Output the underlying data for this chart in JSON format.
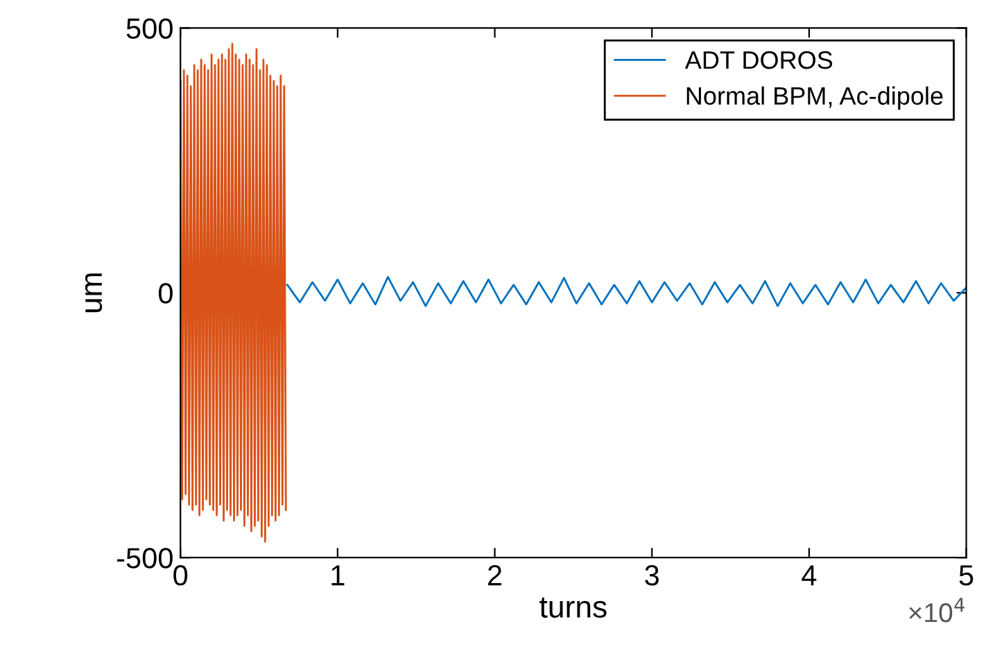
{
  "chart_data": {
    "type": "line",
    "xlabel": "turns",
    "ylabel": "um",
    "xlim": [
      0,
      5
    ],
    "ylim": [
      -500,
      500
    ],
    "xticks": [
      0,
      1,
      2,
      3,
      4,
      5
    ],
    "yticks": [
      -500,
      0,
      500
    ],
    "annotations": [
      "×10$^{4}$"
    ],
    "legend": "top right",
    "grid": false,
    "marker": "none",
    "line_style": "solid",
    "series": [
      {
        "name": "ADT DOROS",
        "color": "#0072bd",
        "x": [
          0.68,
          0.76,
          0.84,
          0.92,
          1.0,
          1.08,
          1.16,
          1.24,
          1.32,
          1.4,
          1.48,
          1.56,
          1.64,
          1.72,
          1.8,
          1.88,
          1.96,
          2.04,
          2.12,
          2.2,
          2.28,
          2.36,
          2.44,
          2.52,
          2.6,
          2.68,
          2.76,
          2.84,
          2.92,
          3.0,
          3.08,
          3.16,
          3.24,
          3.32,
          3.4,
          3.48,
          3.56,
          3.64,
          3.72,
          3.8,
          3.88,
          3.96,
          4.04,
          4.12,
          4.2,
          4.28,
          4.36,
          4.44,
          4.52,
          4.6,
          4.68,
          4.76,
          4.84,
          4.92,
          5.0
        ],
        "values": [
          15,
          -18,
          20,
          -15,
          25,
          -20,
          18,
          -22,
          30,
          -15,
          20,
          -25,
          18,
          -20,
          22,
          -18,
          25,
          -20,
          15,
          -22,
          20,
          -18,
          28,
          -20,
          18,
          -22,
          15,
          -20,
          22,
          -18,
          20,
          -15,
          18,
          -22,
          20,
          -18,
          15,
          -20,
          22,
          -25,
          18,
          -20,
          15,
          -22,
          20,
          -18,
          25,
          -20,
          15,
          -18,
          22,
          -20,
          18,
          -15,
          10
        ]
      },
      {
        "name": "Normal BPM, Ac-dipole",
        "color": "#d95319",
        "x": [
          0,
          0.011,
          0.022,
          0.033,
          0.044,
          0.055,
          0.066,
          0.077,
          0.088,
          0.099,
          0.11,
          0.121,
          0.132,
          0.143,
          0.154,
          0.165,
          0.176,
          0.187,
          0.198,
          0.209,
          0.22,
          0.231,
          0.242,
          0.253,
          0.264,
          0.275,
          0.286,
          0.297,
          0.308,
          0.319,
          0.33,
          0.341,
          0.352,
          0.363,
          0.374,
          0.385,
          0.396,
          0.407,
          0.418,
          0.429,
          0.44,
          0.451,
          0.462,
          0.473,
          0.484,
          0.495,
          0.506,
          0.517,
          0.528,
          0.539,
          0.55,
          0.561,
          0.572,
          0.583,
          0.594,
          0.605,
          0.616,
          0.627,
          0.638,
          0.649,
          0.66,
          0.671
        ],
        "values": [
          400,
          -390,
          420,
          -380,
          410,
          -400,
          390,
          -410,
          430,
          -400,
          420,
          -420,
          440,
          -410,
          430,
          -390,
          420,
          -400,
          450,
          -410,
          430,
          -420,
          440,
          -400,
          450,
          -430,
          440,
          -410,
          460,
          -420,
          470,
          -430,
          450,
          -420,
          440,
          -410,
          430,
          -440,
          450,
          -420,
          440,
          -450,
          430,
          -440,
          460,
          -430,
          420,
          -460,
          440,
          -470,
          430,
          -440,
          410,
          -420,
          400,
          -430,
          390,
          -420,
          410,
          -400,
          390,
          -410
        ]
      }
    ]
  }
}
